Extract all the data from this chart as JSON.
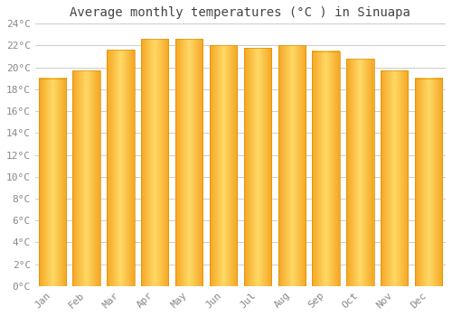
{
  "title": "Average monthly temperatures (°C ) in Sinuapa",
  "months": [
    "Jan",
    "Feb",
    "Mar",
    "Apr",
    "May",
    "Jun",
    "Jul",
    "Aug",
    "Sep",
    "Oct",
    "Nov",
    "Dec"
  ],
  "values": [
    19.0,
    19.7,
    21.6,
    22.6,
    22.6,
    22.0,
    21.8,
    22.0,
    21.5,
    20.8,
    19.7,
    19.0
  ],
  "ylim": [
    0,
    24
  ],
  "yticks": [
    0,
    2,
    4,
    6,
    8,
    10,
    12,
    14,
    16,
    18,
    20,
    22,
    24
  ],
  "ytick_labels": [
    "0°C",
    "2°C",
    "4°C",
    "6°C",
    "8°C",
    "10°C",
    "12°C",
    "14°C",
    "16°C",
    "18°C",
    "20°C",
    "22°C",
    "24°C"
  ],
  "bar_color_center": "#FFD966",
  "bar_color_edge": "#F5A623",
  "background_color": "#FFFFFF",
  "grid_color": "#CCCCCC",
  "title_fontsize": 10,
  "tick_fontsize": 8,
  "title_color": "#444444",
  "tick_color": "#888888"
}
